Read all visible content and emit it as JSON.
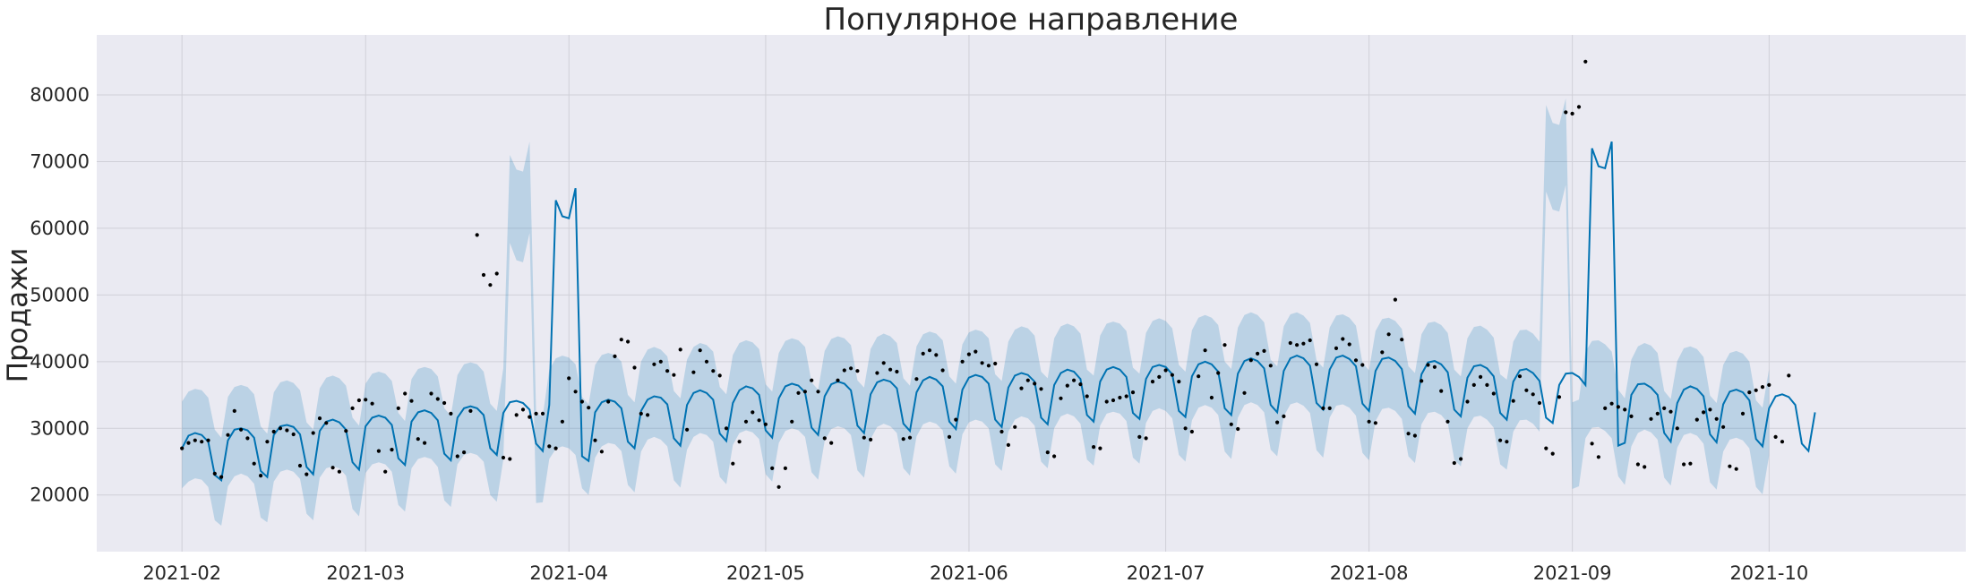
{
  "chart_data": {
    "type": "line",
    "title": "Популярное направление",
    "xlabel": "",
    "ylabel": "Продажи",
    "x_ticks": [
      "2021-02",
      "2021-03",
      "2021-04",
      "2021-05",
      "2021-06",
      "2021-07",
      "2021-08",
      "2021-09",
      "2021-10"
    ],
    "y_ticks": [
      20000,
      30000,
      40000,
      50000,
      60000,
      70000,
      80000
    ],
    "x_range": [
      "2021-01-19",
      "2021-10-31"
    ],
    "ylim": [
      11500,
      89000
    ],
    "grid": true,
    "start_date": "2021-02-01",
    "series": [
      {
        "kind": "forecast_line",
        "color": "#0072B2",
        "values": [
          27000,
          28900,
          29300,
          29000,
          28000,
          23000,
          22200,
          28200,
          29800,
          30000,
          29700,
          28600,
          23600,
          22700,
          29000,
          30300,
          30500,
          30200,
          29100,
          24200,
          23100,
          29600,
          31000,
          31300,
          30900,
          29800,
          24900,
          23800,
          30300,
          31600,
          31900,
          31600,
          30500,
          25500,
          24500,
          31000,
          32400,
          32700,
          32300,
          31200,
          26200,
          25200,
          31600,
          33000,
          33300,
          33000,
          32000,
          27000,
          26000,
          32300,
          33900,
          34100,
          33800,
          32800,
          27700,
          26600,
          33500,
          64200,
          61800,
          61500,
          66000,
          25800,
          25100,
          32400,
          33900,
          34300,
          34000,
          33000,
          28000,
          27000,
          32600,
          34300,
          34800,
          34600,
          33600,
          28500,
          27400,
          33500,
          35300,
          35700,
          35300,
          34300,
          29200,
          28100,
          33800,
          35700,
          36300,
          36000,
          35000,
          29700,
          28600,
          34500,
          36300,
          36700,
          36400,
          35400,
          30100,
          29000,
          34800,
          36600,
          37000,
          36700,
          35700,
          30400,
          29300,
          35100,
          36900,
          37300,
          37000,
          36000,
          30700,
          29600,
          35400,
          37200,
          37700,
          37300,
          36300,
          31000,
          29900,
          35800,
          37600,
          38000,
          37700,
          36700,
          31300,
          30200,
          36100,
          37900,
          38300,
          38000,
          37000,
          31600,
          30600,
          36500,
          38300,
          38800,
          38500,
          37400,
          32000,
          31000,
          37000,
          38800,
          39200,
          38800,
          37700,
          32300,
          31400,
          37400,
          39200,
          39500,
          39200,
          38100,
          32600,
          31700,
          37800,
          39600,
          40000,
          39600,
          38500,
          33000,
          32000,
          38200,
          40100,
          40500,
          40100,
          39000,
          33500,
          32400,
          38600,
          40500,
          40900,
          40500,
          39400,
          33800,
          32800,
          38800,
          40600,
          40900,
          40400,
          39300,
          33700,
          32600,
          38600,
          40400,
          40600,
          40100,
          38900,
          33300,
          32200,
          38100,
          39900,
          40100,
          39600,
          38400,
          32800,
          31800,
          37600,
          39300,
          39500,
          39000,
          37800,
          32300,
          31300,
          37000,
          38700,
          38900,
          38300,
          37100,
          31600,
          30800,
          36500,
          38200,
          38300,
          37700,
          36500,
          72000,
          69300,
          69000,
          73000,
          27400,
          27800,
          35000,
          36600,
          36700,
          36100,
          35000,
          29300,
          28000,
          33800,
          35800,
          36300,
          35900,
          34800,
          29100,
          27900,
          33600,
          35500,
          35800,
          35400,
          34200,
          28400,
          27300,
          33000,
          34800,
          35100,
          34700,
          33500,
          27700,
          26600,
          32400
        ],
        "band_upper": [
          34000,
          35500,
          35900,
          35700,
          34600,
          29800,
          28600,
          34700,
          36200,
          36500,
          36200,
          35100,
          30300,
          29200,
          35400,
          36900,
          37200,
          36800,
          35700,
          30900,
          29800,
          36000,
          37600,
          37900,
          37500,
          36400,
          31600,
          30400,
          36700,
          38200,
          38500,
          38200,
          37100,
          32300,
          31100,
          37400,
          38900,
          39200,
          38900,
          37800,
          33000,
          31900,
          38000,
          39600,
          39900,
          39600,
          38500,
          33700,
          32600,
          39000,
          71000,
          68800,
          68500,
          73000,
          32200,
          31800,
          38800,
          40500,
          40900,
          40600,
          39600,
          34700,
          33600,
          39500,
          41000,
          41300,
          41000,
          40000,
          35000,
          33900,
          40000,
          41800,
          42200,
          41800,
          40800,
          35600,
          34500,
          40300,
          42200,
          42800,
          42500,
          41500,
          36200,
          35100,
          41000,
          42800,
          43200,
          42900,
          41900,
          36600,
          35500,
          41300,
          43100,
          43500,
          43200,
          42200,
          36900,
          35800,
          41600,
          43400,
          43800,
          43500,
          42500,
          37200,
          36100,
          41900,
          43700,
          44200,
          43800,
          42800,
          37500,
          36400,
          42300,
          44100,
          44500,
          44200,
          43200,
          37800,
          36700,
          42600,
          44400,
          44800,
          44500,
          43500,
          38100,
          37100,
          43000,
          44800,
          45300,
          45000,
          43900,
          38500,
          37500,
          43500,
          45300,
          45700,
          45300,
          44200,
          38800,
          37900,
          43900,
          45700,
          46000,
          45700,
          44600,
          39100,
          38200,
          44300,
          46100,
          46500,
          46100,
          45000,
          39500,
          38500,
          44700,
          46600,
          47000,
          46600,
          45500,
          40000,
          38900,
          45100,
          47000,
          47400,
          47000,
          45900,
          40300,
          39300,
          45300,
          47100,
          47400,
          46900,
          45800,
          40200,
          39100,
          45100,
          46900,
          47100,
          46600,
          45400,
          39800,
          38700,
          44600,
          46400,
          46600,
          46100,
          44900,
          39300,
          38300,
          44100,
          45800,
          46000,
          45500,
          44300,
          38800,
          37800,
          43500,
          45200,
          45400,
          44800,
          43600,
          38100,
          37300,
          43000,
          44700,
          44800,
          44200,
          43000,
          78500,
          75800,
          75500,
          79500,
          33900,
          34300,
          41500,
          43100,
          43200,
          42600,
          41500,
          35800,
          34500,
          40300,
          42300,
          42800,
          42400,
          41300,
          35600,
          34400,
          40100,
          42000,
          42300,
          41900,
          40700,
          34900,
          33800,
          39500,
          41300,
          41600,
          41200,
          40000,
          34200,
          33100,
          38900
        ],
        "band_lower": [
          21000,
          22000,
          22500,
          22300,
          21200,
          16200,
          15400,
          21300,
          22800,
          23200,
          22800,
          21700,
          16600,
          15900,
          22000,
          23500,
          23800,
          23500,
          22400,
          17200,
          16200,
          22600,
          24000,
          24300,
          24000,
          22900,
          17900,
          16800,
          23300,
          24600,
          24900,
          24600,
          23500,
          18500,
          17500,
          24000,
          25400,
          25700,
          25400,
          24200,
          19200,
          18200,
          24600,
          26000,
          26300,
          26000,
          25000,
          20000,
          19000,
          25300,
          57800,
          55200,
          54900,
          59300,
          18800,
          18900,
          25400,
          26900,
          27300,
          27000,
          26000,
          21000,
          20000,
          25600,
          27300,
          27800,
          27600,
          26600,
          21500,
          20400,
          26500,
          28300,
          28700,
          28300,
          27300,
          22200,
          21100,
          26800,
          28700,
          29300,
          29000,
          28000,
          22700,
          21600,
          27500,
          29300,
          29700,
          29400,
          28400,
          23100,
          22000,
          27800,
          29600,
          30000,
          29700,
          28700,
          23400,
          22300,
          28100,
          29900,
          30300,
          30000,
          29000,
          23700,
          22600,
          28400,
          30200,
          30700,
          30300,
          29300,
          24000,
          22900,
          28800,
          30600,
          31000,
          30700,
          29700,
          24300,
          23200,
          29100,
          30900,
          31300,
          31000,
          30000,
          24600,
          23600,
          29500,
          31300,
          31800,
          31500,
          30400,
          25000,
          24000,
          30000,
          31800,
          32200,
          31800,
          30700,
          25300,
          24400,
          30400,
          32200,
          32500,
          32200,
          31100,
          25600,
          24700,
          30800,
          32600,
          33000,
          32600,
          31500,
          26000,
          25000,
          31200,
          33100,
          33500,
          33100,
          32000,
          26500,
          25400,
          31600,
          33500,
          33900,
          33500,
          32400,
          26800,
          25800,
          31800,
          33600,
          33900,
          33400,
          32300,
          26700,
          25600,
          31600,
          33400,
          33600,
          33100,
          31900,
          26300,
          25200,
          31100,
          32900,
          33100,
          32600,
          31400,
          25800,
          24800,
          30600,
          32300,
          32500,
          32000,
          30800,
          25300,
          24300,
          30000,
          31700,
          31900,
          31300,
          30100,
          24600,
          23800,
          29500,
          31200,
          31300,
          30700,
          29500,
          65500,
          62800,
          62500,
          66500,
          20900,
          21300,
          28500,
          30100,
          30200,
          29600,
          28500,
          22800,
          21500,
          27300,
          29300,
          29800,
          29400,
          28300,
          22600,
          21400,
          27100,
          29000,
          29300,
          28900,
          27700,
          21900,
          20800,
          26500,
          28300,
          28600,
          28200,
          27000,
          21200,
          20100,
          25900
        ],
        "note_points": "observed daily values shown as black dots; index 0 = 2021-02-01"
      },
      {
        "kind": "observed_points",
        "color": "#000000",
        "values": [
          27000,
          27800,
          28200,
          28000,
          28200,
          23200,
          22700,
          29000,
          32600,
          29800,
          28500,
          24700,
          22900,
          28000,
          29500,
          30000,
          29700,
          29100,
          24400,
          23100,
          29300,
          31500,
          30800,
          24100,
          23500,
          29600,
          33000,
          34200,
          34300,
          33700,
          26600,
          23500,
          26800,
          33000,
          35200,
          34100,
          28400,
          27800,
          35200,
          34400,
          33800,
          32200,
          25800,
          26400,
          32600,
          59000,
          53000,
          51500,
          53200,
          25600,
          25400,
          32000,
          32800,
          31700,
          32200,
          32200,
          27300,
          27000,
          31000,
          37500,
          35500,
          34000,
          33100,
          28200,
          26500,
          34000,
          40800,
          43300,
          43000,
          39100,
          32200,
          32000,
          39600,
          40000,
          38600,
          38000,
          41800,
          29800,
          38400,
          41700,
          40000,
          38600,
          37900,
          30000,
          24700,
          28000,
          31000,
          32400,
          31200,
          30600,
          24000,
          21200,
          24000,
          31000,
          35300,
          35500,
          37200,
          35500,
          28500,
          27800,
          37200,
          38700,
          39000,
          38600,
          28600,
          28300,
          38300,
          39800,
          38800,
          38500,
          28400,
          28600,
          37400,
          41200,
          41700,
          41000,
          38700,
          28700,
          31300,
          40000,
          41100,
          41500,
          39800,
          39400,
          39700,
          29500,
          27500,
          30200,
          36000,
          37200,
          36700,
          35900,
          26400,
          25800,
          34500,
          36400,
          37200,
          36600,
          34800,
          27200,
          27000,
          34000,
          34200,
          34600,
          34800,
          35400,
          28700,
          28500,
          37000,
          37700,
          38700,
          38000,
          37000,
          30000,
          29500,
          37800,
          41700,
          34600,
          38300,
          42500,
          30600,
          29900,
          35300,
          40200,
          41200,
          41600,
          39400,
          30900,
          31800,
          42800,
          42500,
          42700,
          43200,
          39600,
          33000,
          33000,
          42000,
          43400,
          42600,
          40200,
          39500,
          31000,
          30800,
          41400,
          44100,
          49300,
          43300,
          29200,
          28900,
          37100,
          39500,
          39200,
          35600,
          31000,
          24800,
          25400,
          34000,
          36500,
          37700,
          36500,
          35200,
          28200,
          28000,
          34100,
          37800,
          35700,
          35100,
          33800,
          27000,
          26200,
          34700,
          77400,
          77200,
          78200,
          85000,
          27700,
          25700,
          33000,
          33700,
          33200,
          32800,
          31800,
          24600,
          24200,
          31400,
          32200,
          33000,
          32500,
          30000,
          24600,
          24700,
          31300,
          32400,
          32800,
          31400,
          30200,
          24300,
          23900,
          32200,
          35400,
          35700,
          36200,
          36500,
          28700,
          28000,
          37900
        ]
      }
    ]
  }
}
